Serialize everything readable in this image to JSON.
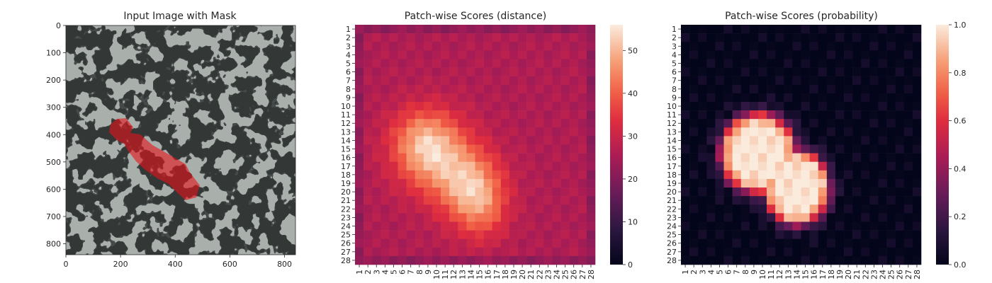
{
  "chart_data": [
    {
      "type": "image",
      "title": "Input Image with Mask",
      "xticks": [
        0,
        200,
        400,
        600,
        800
      ],
      "yticks": [
        0,
        100,
        200,
        300,
        400,
        500,
        600,
        700,
        800
      ],
      "xlim": [
        0,
        840
      ],
      "ylim": [
        840,
        0
      ],
      "mask_color": "#e8121b",
      "texture_light": "#a9afab",
      "texture_dark": "#2b2e2e"
    },
    {
      "type": "heatmap",
      "title": "Patch-wise Scores (distance)",
      "xticks": [
        "1",
        "2",
        "3",
        "4",
        "5",
        "6",
        "7",
        "8",
        "9",
        "10",
        "11",
        "12",
        "13",
        "14",
        "15",
        "16",
        "17",
        "18",
        "19",
        "20",
        "21",
        "22",
        "23",
        "24",
        "25",
        "26",
        "27",
        "28"
      ],
      "yticks": [
        "1",
        "2",
        "3",
        "4",
        "5",
        "6",
        "7",
        "8",
        "9",
        "10",
        "11",
        "12",
        "13",
        "14",
        "15",
        "16",
        "17",
        "18",
        "19",
        "20",
        "21",
        "22",
        "23",
        "24",
        "25",
        "26",
        "27",
        "28"
      ],
      "colorbar_ticks": [
        0,
        10,
        20,
        30,
        40,
        50
      ],
      "vmin": 0,
      "vmax": 56,
      "colormap": "rocket",
      "baseline": 26,
      "blobs": [
        {
          "row": 15.5,
          "col": 9.5,
          "sigma_r": 3.2,
          "sigma_c": 3.0,
          "amp": 22
        },
        {
          "row": 19.5,
          "col": 14.0,
          "sigma_r": 3.0,
          "sigma_c": 2.6,
          "amp": 22
        },
        {
          "row": 13.5,
          "col": 8.0,
          "sigma_r": 2.5,
          "sigma_c": 2.5,
          "amp": 8
        },
        {
          "row": 22.5,
          "col": 15.5,
          "sigma_r": 2.5,
          "sigma_c": 2.0,
          "amp": 8
        }
      ]
    },
    {
      "type": "heatmap",
      "title": "Patch-wise Scores (probability)",
      "xticks": [
        "1",
        "2",
        "3",
        "4",
        "5",
        "6",
        "7",
        "8",
        "9",
        "10",
        "11",
        "12",
        "13",
        "14",
        "15",
        "16",
        "17",
        "18",
        "19",
        "20",
        "21",
        "22",
        "23",
        "24",
        "25",
        "26",
        "27",
        "28"
      ],
      "yticks": [
        "1",
        "2",
        "3",
        "4",
        "5",
        "6",
        "7",
        "8",
        "9",
        "10",
        "11",
        "12",
        "13",
        "14",
        "15",
        "16",
        "17",
        "18",
        "19",
        "20",
        "21",
        "22",
        "23",
        "24",
        "25",
        "26",
        "27",
        "28"
      ],
      "colorbar_ticks": [
        0.0,
        0.2,
        0.4,
        0.6,
        0.8,
        1.0
      ],
      "vmin": 0,
      "vmax": 1,
      "colormap": "rocket",
      "blobs": [
        {
          "row": 15.5,
          "col": 9.5,
          "sigma_r": 3.2,
          "sigma_c": 3.0,
          "amp": 1.0
        },
        {
          "row": 19.5,
          "col": 14.0,
          "sigma_r": 3.0,
          "sigma_c": 2.6,
          "amp": 1.0
        }
      ]
    }
  ]
}
